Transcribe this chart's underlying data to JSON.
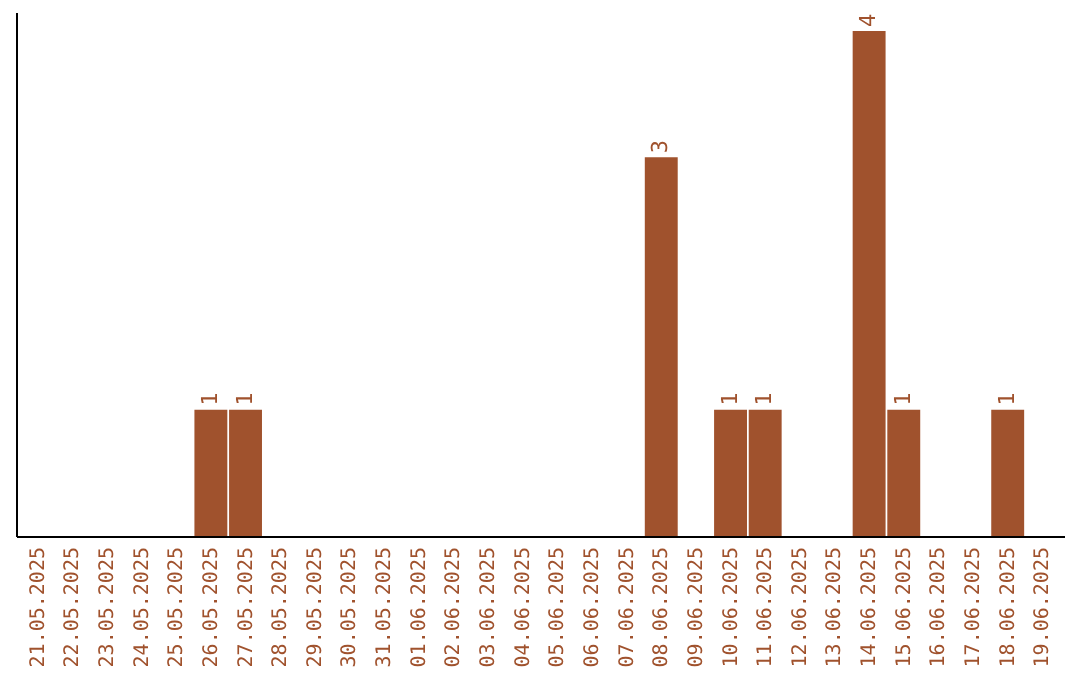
{
  "chart_data": {
    "type": "bar",
    "categories": [
      "21.05.2025",
      "22.05.2025",
      "23.05.2025",
      "24.05.2025",
      "25.05.2025",
      "26.05.2025",
      "27.05.2025",
      "28.05.2025",
      "29.05.2025",
      "30.05.2025",
      "31.05.2025",
      "01.06.2025",
      "02.06.2025",
      "03.06.2025",
      "04.06.2025",
      "05.06.2025",
      "06.06.2025",
      "07.06.2025",
      "08.06.2025",
      "09.06.2025",
      "10.06.2025",
      "11.06.2025",
      "12.06.2025",
      "13.06.2025",
      "14.06.2025",
      "15.06.2025",
      "16.06.2025",
      "17.06.2025",
      "18.06.2025",
      "19.06.2025"
    ],
    "values": [
      0,
      0,
      0,
      0,
      0,
      1,
      1,
      0,
      0,
      0,
      0,
      0,
      0,
      0,
      0,
      0,
      0,
      0,
      3,
      0,
      1,
      1,
      0,
      0,
      4,
      1,
      0,
      0,
      1,
      0
    ],
    "value_labels": [
      null,
      null,
      null,
      null,
      null,
      "1",
      "1",
      null,
      null,
      null,
      null,
      null,
      null,
      null,
      null,
      null,
      null,
      null,
      "3",
      null,
      "1",
      "1",
      null,
      null,
      "4",
      "1",
      null,
      null,
      "1",
      null
    ],
    "color": "#a0522d",
    "ylim": [
      0,
      4.15
    ],
    "tick_labels": "x",
    "grid": false
  }
}
